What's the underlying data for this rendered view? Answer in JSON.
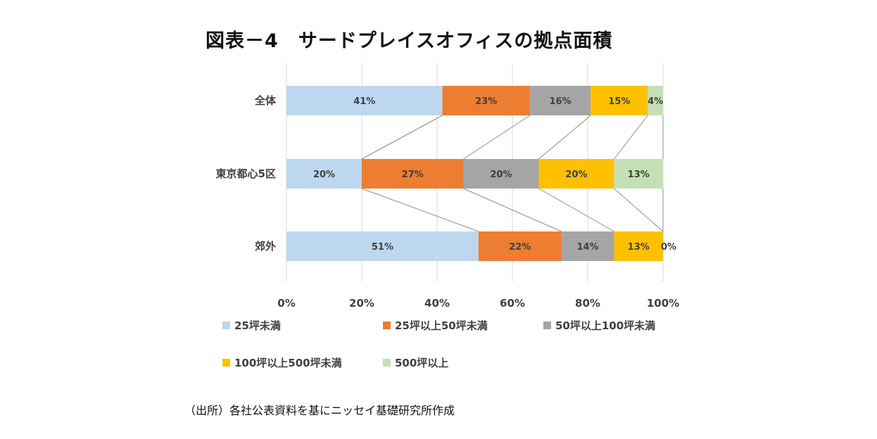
{
  "title": "図表－4　サードプレイスオフィスの拠点面積",
  "source": "（出所）各社公表資料を基にニッセイ基礎研究所作成",
  "chart_data": {
    "type": "bar",
    "orientation": "horizontal",
    "stacked": "percent",
    "categories": [
      "全体",
      "東京都心5区",
      "郊外"
    ],
    "series": [
      {
        "name": "25坪未満",
        "color": "#BDD7EE",
        "values": [
          41,
          20,
          51
        ],
        "labels": [
          "41%",
          "20%",
          "51%"
        ]
      },
      {
        "name": "25坪以上50坪未満",
        "color": "#ED7D31",
        "values": [
          23,
          27,
          22
        ],
        "labels": [
          "23%",
          "27%",
          "22%"
        ]
      },
      {
        "name": "50坪以上100坪未満",
        "color": "#A5A5A5",
        "values": [
          16,
          20,
          14
        ],
        "labels": [
          "16%",
          "20%",
          "14%"
        ]
      },
      {
        "name": "100坪以上500坪未満",
        "color": "#FFC000",
        "values": [
          15,
          20,
          13
        ],
        "labels": [
          "15%",
          "20%",
          "13%"
        ]
      },
      {
        "name": "500坪以上",
        "color": "#C5E0B4",
        "values": [
          4,
          13,
          0
        ],
        "labels": [
          "4%",
          "13%",
          "0%"
        ]
      }
    ],
    "xticks": [
      "0%",
      "20%",
      "40%",
      "60%",
      "80%",
      "100%"
    ],
    "xlim": [
      0,
      100
    ],
    "grid": "vertical",
    "series_lines": true,
    "legend_position": "bottom"
  }
}
